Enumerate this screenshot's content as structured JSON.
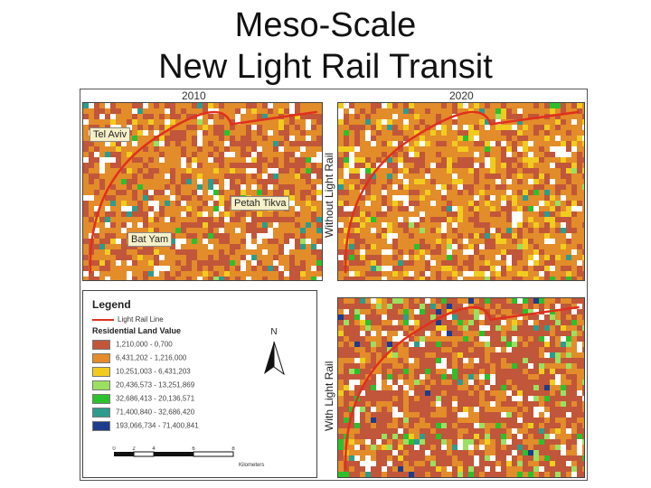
{
  "slide": {
    "title_line1": "Meso-Scale",
    "title_line2": "New Light Rail Transit"
  },
  "figure": {
    "year_left": "2010",
    "year_right": "2020",
    "label_without": "Without Light Rail",
    "label_with": "With Light Rail",
    "callouts": {
      "tel_aviv": "Tel Aviv",
      "petah_tikva": "Petah Tikva",
      "bat_yam": "Bat Yam"
    }
  },
  "legend": {
    "title": "Legend",
    "line_label": "Light Rail Line",
    "section_title": "Residential Land Value",
    "classes": [
      {
        "label": "1,210,000 - 0,700",
        "color": "#c1563a"
      },
      {
        "label": "6,431,202 - 1,216,000",
        "color": "#e38c2a"
      },
      {
        "label": "10,251,003 - 6,431,203",
        "color": "#f1cc1e"
      },
      {
        "label": "20,436,573 - 13,251,869",
        "color": "#9be060"
      },
      {
        "label": "32,686,413 - 20,136,571",
        "color": "#2cc02c"
      },
      {
        "label": "71,400,840 - 32,686,420",
        "color": "#2e9c8c"
      },
      {
        "label": "193,066,734 - 71,400,841",
        "color": "#1e3c8c"
      }
    ],
    "north": "N",
    "scale_ticks": [
      "0",
      "2",
      "4",
      "6",
      "8"
    ],
    "scale_unit": "Kilometers"
  },
  "colors": {
    "rail": "#e0301e",
    "empty": "#ffffff"
  }
}
